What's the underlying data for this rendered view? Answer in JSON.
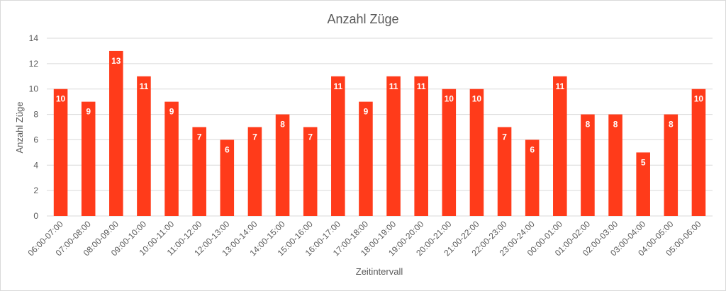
{
  "chart_data": {
    "type": "bar",
    "title": "Anzahl Züge",
    "x_label": "Zeitintervall",
    "y_label": "Anzahl Züge",
    "categories": [
      "06:00-07:00",
      "07:00-08:00",
      "08:00-09:00",
      "09:00-10:00",
      "10:00-11:00",
      "11:00-12:00",
      "12:00-13:00",
      "13:00-14:00",
      "14:00-15:00",
      "15:00-16:00",
      "16:00-17:00",
      "17:00-18:00",
      "18:00-19:00",
      "19:00-20:00",
      "20:00-21:00",
      "21:00-22:00",
      "22:00-23:00",
      "23:00-24:00",
      "00:00-01:00",
      "01:00-02:00",
      "02:00-03:00",
      "03:00-04:00",
      "04:00-05:00",
      "05:00-06:00"
    ],
    "values": [
      10,
      9,
      13,
      11,
      9,
      7,
      6,
      7,
      8,
      7,
      11,
      9,
      11,
      11,
      10,
      10,
      7,
      6,
      11,
      8,
      8,
      5,
      8,
      10
    ],
    "color": "#ff3b1a",
    "ylim": [
      0,
      14
    ],
    "yticks": [
      0,
      2,
      4,
      6,
      8,
      10,
      12,
      14
    ],
    "grid": true
  }
}
